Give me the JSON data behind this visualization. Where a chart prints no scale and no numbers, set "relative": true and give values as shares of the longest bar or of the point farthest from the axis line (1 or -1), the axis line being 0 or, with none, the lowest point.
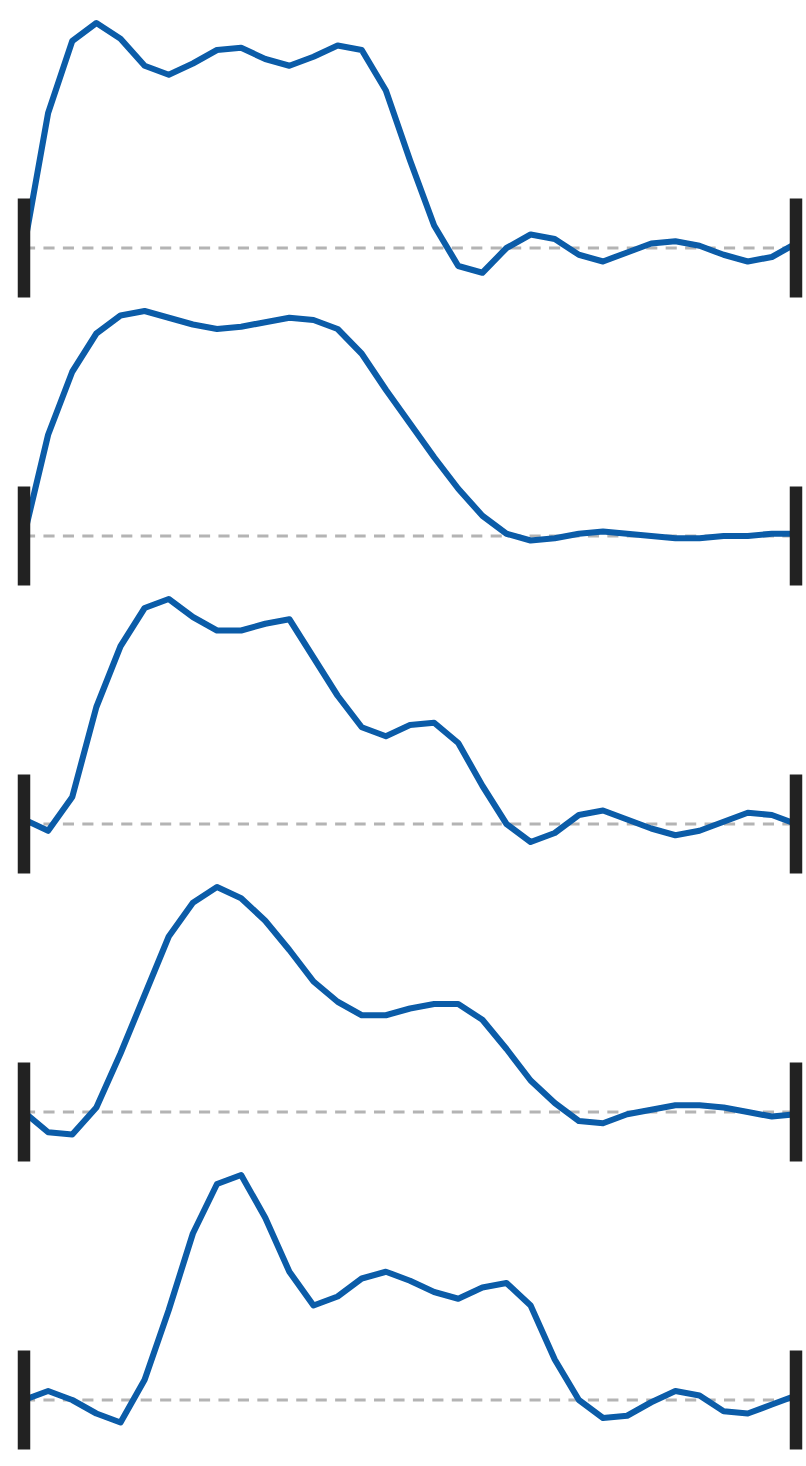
{
  "chart_data": [
    {
      "type": "line",
      "relative": true,
      "line_style": "solid",
      "ref_lines": [
        {
          "axis": "y",
          "value": 0,
          "color": "#b4b4b4",
          "line_style": "dashed"
        }
      ],
      "categories": [
        null,
        null,
        null,
        null,
        null,
        null,
        null,
        null,
        null,
        null,
        null,
        null,
        null,
        null,
        null,
        null,
        null,
        null,
        null,
        null,
        null,
        null,
        null,
        null,
        null,
        null,
        null,
        null,
        null,
        null,
        null,
        null,
        null
      ],
      "series": [
        {
          "color": "#0b5ca8",
          "values": [
            0,
            0.6,
            0.92,
            1.0,
            0.93,
            0.81,
            0.77,
            0.82,
            0.88,
            0.89,
            0.84,
            0.81,
            0.85,
            0.9,
            0.88,
            0.7,
            0.39,
            0.1,
            -0.08,
            -0.11,
            0.0,
            0.06,
            0.04,
            -0.03,
            -0.06,
            -0.02,
            0.02,
            0.03,
            0.01,
            -0.03,
            -0.06,
            -0.04,
            0.02
          ]
        }
      ]
    },
    {
      "type": "line",
      "relative": true,
      "line_style": "solid",
      "ref_lines": [
        {
          "axis": "y",
          "value": 0,
          "color": "#b4b4b4",
          "line_style": "dashed"
        }
      ],
      "categories": [
        null,
        null,
        null,
        null,
        null,
        null,
        null,
        null,
        null,
        null,
        null,
        null,
        null,
        null,
        null,
        null,
        null,
        null,
        null,
        null,
        null,
        null,
        null,
        null,
        null,
        null,
        null,
        null,
        null,
        null,
        null,
        null,
        null
      ],
      "series": [
        {
          "color": "#0b5ca8",
          "values": [
            0,
            0.45,
            0.73,
            0.9,
            0.98,
            1.0,
            0.97,
            0.94,
            0.92,
            0.93,
            0.95,
            0.97,
            0.96,
            0.92,
            0.81,
            0.65,
            0.5,
            0.35,
            0.21,
            0.09,
            0.01,
            -0.02,
            -0.01,
            0.01,
            0.02,
            0.01,
            0,
            -0.01,
            -0.01,
            0,
            0,
            0.01,
            0.01
          ]
        }
      ]
    },
    {
      "type": "line",
      "relative": true,
      "line_style": "solid",
      "ref_lines": [
        {
          "axis": "y",
          "value": 0,
          "color": "#b4b4b4",
          "line_style": "dashed"
        }
      ],
      "categories": [
        null,
        null,
        null,
        null,
        null,
        null,
        null,
        null,
        null,
        null,
        null,
        null,
        null,
        null,
        null,
        null,
        null,
        null,
        null,
        null,
        null,
        null,
        null,
        null,
        null,
        null,
        null,
        null,
        null,
        null,
        null,
        null,
        null
      ],
      "series": [
        {
          "color": "#0b5ca8",
          "values": [
            0.02,
            -0.03,
            0.12,
            0.52,
            0.79,
            0.96,
            1.0,
            0.92,
            0.86,
            0.86,
            0.89,
            0.91,
            0.74,
            0.57,
            0.43,
            0.39,
            0.44,
            0.45,
            0.36,
            0.17,
            0.0,
            -0.08,
            -0.04,
            0.04,
            0.06,
            0.02,
            -0.02,
            -0.05,
            -0.03,
            0.01,
            0.05,
            0.04,
            0
          ]
        }
      ]
    },
    {
      "type": "line",
      "relative": true,
      "line_style": "solid",
      "ref_lines": [
        {
          "axis": "y",
          "value": 0,
          "color": "#b4b4b4",
          "line_style": "dashed"
        }
      ],
      "categories": [
        null,
        null,
        null,
        null,
        null,
        null,
        null,
        null,
        null,
        null,
        null,
        null,
        null,
        null,
        null,
        null,
        null,
        null,
        null,
        null,
        null,
        null,
        null,
        null,
        null,
        null,
        null,
        null,
        null,
        null,
        null,
        null,
        null
      ],
      "series": [
        {
          "color": "#0b5ca8",
          "values": [
            0,
            -0.09,
            -0.1,
            0.02,
            0.26,
            0.52,
            0.78,
            0.93,
            1.0,
            0.95,
            0.85,
            0.72,
            0.58,
            0.49,
            0.43,
            0.43,
            0.46,
            0.48,
            0.48,
            0.41,
            0.28,
            0.14,
            0.04,
            -0.04,
            -0.05,
            -0.01,
            0.01,
            0.03,
            0.03,
            0.02,
            0,
            -0.02,
            -0.01
          ]
        }
      ]
    },
    {
      "type": "line",
      "relative": true,
      "line_style": "solid",
      "ref_lines": [
        {
          "axis": "y",
          "value": 0,
          "color": "#b4b4b4",
          "line_style": "dashed"
        }
      ],
      "categories": [
        null,
        null,
        null,
        null,
        null,
        null,
        null,
        null,
        null,
        null,
        null,
        null,
        null,
        null,
        null,
        null,
        null,
        null,
        null,
        null,
        null,
        null,
        null,
        null,
        null,
        null,
        null,
        null,
        null,
        null,
        null,
        null,
        null
      ],
      "series": [
        {
          "color": "#0b5ca8",
          "values": [
            0,
            0.04,
            0.0,
            -0.06,
            -0.1,
            0.09,
            0.4,
            0.74,
            0.96,
            1.0,
            0.81,
            0.57,
            0.42,
            0.46,
            0.54,
            0.57,
            0.53,
            0.48,
            0.45,
            0.5,
            0.52,
            0.42,
            0.18,
            0.0,
            -0.08,
            -0.07,
            -0.01,
            0.04,
            0.02,
            -0.05,
            -0.06,
            -0.02,
            0.02
          ]
        }
      ]
    }
  ]
}
